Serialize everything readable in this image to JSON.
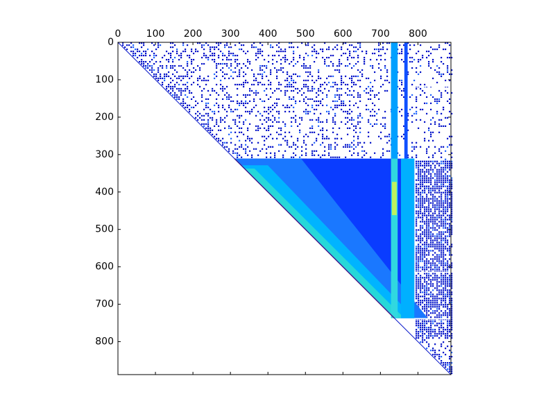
{
  "chart_data": {
    "type": "matrix",
    "xlim": [
      0,
      888
    ],
    "ylim": [
      888,
      0
    ],
    "xticks": [
      0,
      100,
      200,
      300,
      400,
      500,
      600,
      700,
      800
    ],
    "yticks": [
      0,
      100,
      200,
      300,
      400,
      500,
      600,
      700,
      800
    ]
  }
}
